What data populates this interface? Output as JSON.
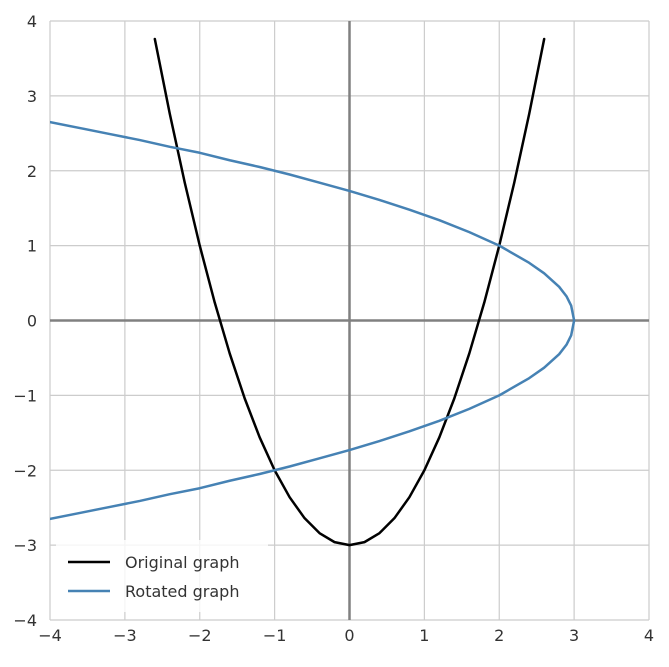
{
  "chart_data": {
    "type": "line",
    "title": "",
    "xlabel": "",
    "ylabel": "",
    "xlim": [
      -4,
      4
    ],
    "ylim": [
      -4,
      4
    ],
    "x_ticks": [
      -4,
      -3,
      -2,
      -1,
      0,
      1,
      2,
      3,
      4
    ],
    "y_ticks": [
      -4,
      -3,
      -2,
      -1,
      0,
      1,
      2,
      3,
      4
    ],
    "x_tick_labels": [
      "−4",
      "−3",
      "−2",
      "−1",
      "0",
      "1",
      "2",
      "3",
      "4"
    ],
    "y_tick_labels": [
      "−4",
      "−3",
      "−2",
      "−1",
      "0",
      "1",
      "2",
      "3",
      "4"
    ],
    "grid": true,
    "zero_axes": true,
    "aspect": "equal",
    "legend_position": "lower-left",
    "series": [
      {
        "name": "Original graph",
        "color": "#000000",
        "x": [
          -2.6,
          -2.4,
          -2.2,
          -2.0,
          -1.8,
          -1.6,
          -1.4,
          -1.2,
          -1.0,
          -0.8,
          -0.6,
          -0.4,
          -0.2,
          0.0,
          0.2,
          0.4,
          0.6,
          0.8,
          1.0,
          1.2,
          1.4,
          1.6,
          1.8,
          2.0,
          2.2,
          2.4,
          2.6
        ],
        "y": [
          3.76,
          2.76,
          1.84,
          1.0,
          0.24,
          -0.44,
          -1.04,
          -1.56,
          -2.0,
          -2.36,
          -2.64,
          -2.84,
          -2.96,
          -3.0,
          -2.96,
          -2.84,
          -2.64,
          -2.36,
          -2.0,
          -1.56,
          -1.04,
          -0.44,
          0.24,
          1.0,
          1.84,
          2.76,
          3.76
        ]
      },
      {
        "name": "Rotated graph",
        "color": "#4682b4",
        "x": [
          -4.0,
          -3.6,
          -3.2,
          -2.8,
          -2.4,
          -2.0,
          -1.6,
          -1.2,
          -0.8,
          -0.4,
          0.0,
          0.4,
          0.8,
          1.2,
          1.6,
          2.0,
          2.4,
          2.6,
          2.8,
          2.9,
          2.96,
          3.0,
          2.96,
          2.9,
          2.8,
          2.6,
          2.4,
          2.0,
          1.6,
          1.2,
          0.8,
          0.4,
          0.0,
          -0.4,
          -0.8,
          -1.2,
          -1.6,
          -2.0,
          -2.4,
          -2.8,
          -3.2,
          -3.6,
          -4.0
        ],
        "y": [
          2.65,
          2.57,
          2.49,
          2.41,
          2.32,
          2.24,
          2.14,
          2.05,
          1.95,
          1.84,
          1.73,
          1.61,
          1.48,
          1.34,
          1.18,
          1.0,
          0.77,
          0.63,
          0.45,
          0.32,
          0.2,
          0.0,
          -0.2,
          -0.32,
          -0.45,
          -0.63,
          -0.77,
          -1.0,
          -1.18,
          -1.34,
          -1.48,
          -1.61,
          -1.73,
          -1.84,
          -1.95,
          -2.05,
          -2.14,
          -2.24,
          -2.32,
          -2.41,
          -2.49,
          -2.57,
          -2.65
        ]
      }
    ]
  }
}
